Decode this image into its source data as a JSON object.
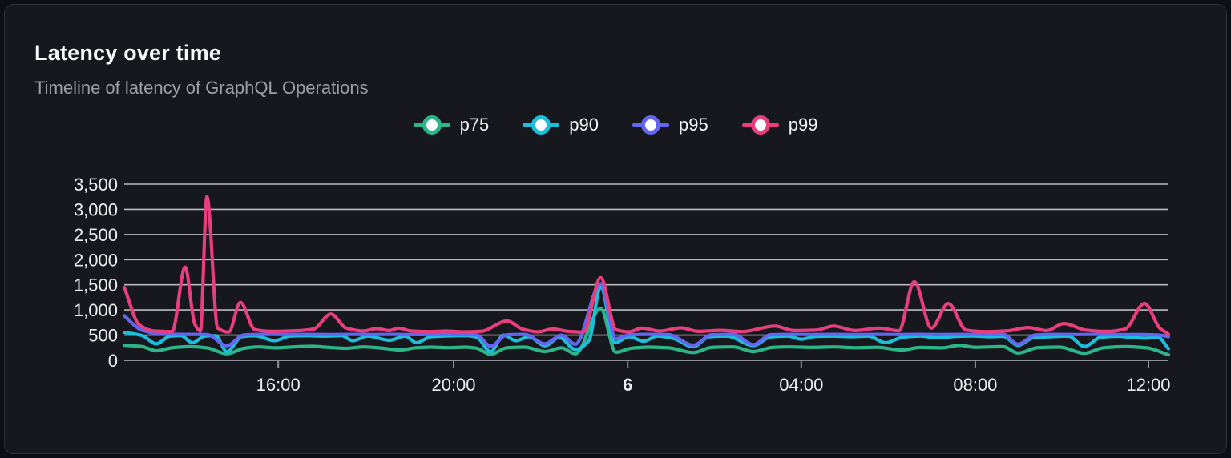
{
  "card": {
    "title": "Latency over time",
    "subtitle": "Timeline of latency of GraphQL Operations"
  },
  "colors": {
    "page_bg": "#0d0f12",
    "card_bg": "#16181d",
    "card_border": "#2e3138",
    "title_text": "#fafafa",
    "subtitle_text": "#9aa0a8",
    "grid_line": "#c7c9ce",
    "axis_line": "#8e9196",
    "axis_text": "#ededee",
    "p75": "#2bb588",
    "p90": "#1cbedb",
    "p95": "#6366f1",
    "p99": "#e83e7e"
  },
  "chart_data": {
    "type": "line",
    "title": "Latency over time",
    "subtitle": "Timeline of latency of GraphQL Operations",
    "xlabel": "",
    "ylabel": "",
    "grid": "horizontal",
    "legend_position": "top-center",
    "x_axis": {
      "unit": "hours-from-left-edge (left edge ≈ 12:30, span 24h)",
      "range_hours": [
        0,
        24
      ],
      "ticks": [
        {
          "hour": 3.54,
          "label": "16:00",
          "bold": false
        },
        {
          "hour": 7.57,
          "label": "20:00",
          "bold": false
        },
        {
          "hour": 11.57,
          "label": "6",
          "bold": true
        },
        {
          "hour": 15.56,
          "label": "04:00",
          "bold": false
        },
        {
          "hour": 19.56,
          "label": "08:00",
          "bold": false
        },
        {
          "hour": 23.54,
          "label": "12:00",
          "bold": false
        }
      ]
    },
    "y_axis": {
      "min": 0,
      "max": 3500,
      "step": 500,
      "tick_labels": [
        "0",
        "500",
        "1,000",
        "1,500",
        "2,000",
        "2,500",
        "3,000",
        "3,500"
      ]
    },
    "series": [
      {
        "name": "p75",
        "color_key": "p75",
        "points": [
          [
            0,
            300
          ],
          [
            0.4,
            275
          ],
          [
            0.74,
            190
          ],
          [
            1.1,
            250
          ],
          [
            1.5,
            272
          ],
          [
            1.9,
            248
          ],
          [
            2.36,
            130
          ],
          [
            2.75,
            240
          ],
          [
            3.1,
            268
          ],
          [
            3.5,
            248
          ],
          [
            3.9,
            268
          ],
          [
            4.3,
            278
          ],
          [
            4.7,
            258
          ],
          [
            5.1,
            238
          ],
          [
            5.5,
            268
          ],
          [
            5.9,
            245
          ],
          [
            6.35,
            205
          ],
          [
            6.7,
            250
          ],
          [
            7.05,
            262
          ],
          [
            7.45,
            252
          ],
          [
            7.85,
            262
          ],
          [
            8.1,
            240
          ],
          [
            8.42,
            120
          ],
          [
            8.8,
            252
          ],
          [
            9.2,
            262
          ],
          [
            9.67,
            175
          ],
          [
            10.05,
            248
          ],
          [
            10.37,
            130
          ],
          [
            10.95,
            1030
          ],
          [
            11.3,
            160
          ],
          [
            11.65,
            240
          ],
          [
            12.05,
            262
          ],
          [
            12.5,
            250
          ],
          [
            13.08,
            155
          ],
          [
            13.5,
            258
          ],
          [
            14.0,
            268
          ],
          [
            14.46,
            175
          ],
          [
            14.9,
            258
          ],
          [
            15.3,
            268
          ],
          [
            15.8,
            258
          ],
          [
            16.3,
            268
          ],
          [
            16.8,
            250
          ],
          [
            17.3,
            260
          ],
          [
            17.87,
            205
          ],
          [
            18.3,
            258
          ],
          [
            18.8,
            248
          ],
          [
            19.2,
            300
          ],
          [
            19.55,
            260
          ],
          [
            19.9,
            268
          ],
          [
            20.2,
            272
          ],
          [
            20.54,
            145
          ],
          [
            21.0,
            252
          ],
          [
            21.5,
            262
          ],
          [
            22.07,
            140
          ],
          [
            22.5,
            250
          ],
          [
            23.0,
            272
          ],
          [
            23.5,
            248
          ],
          [
            24,
            110
          ]
        ]
      },
      {
        "name": "p90",
        "color_key": "p90",
        "points": [
          [
            0,
            555
          ],
          [
            0.4,
            495
          ],
          [
            0.74,
            330
          ],
          [
            1.05,
            480
          ],
          [
            1.3,
            490
          ],
          [
            1.57,
            350
          ],
          [
            1.85,
            480
          ],
          [
            2.1,
            488
          ],
          [
            2.36,
            170
          ],
          [
            2.7,
            470
          ],
          [
            3.0,
            488
          ],
          [
            3.46,
            390
          ],
          [
            3.8,
            480
          ],
          [
            4.2,
            488
          ],
          [
            4.6,
            480
          ],
          [
            5.0,
            488
          ],
          [
            5.25,
            390
          ],
          [
            5.6,
            480
          ],
          [
            6.1,
            400
          ],
          [
            6.45,
            480
          ],
          [
            6.72,
            350
          ],
          [
            7.05,
            470
          ],
          [
            7.45,
            485
          ],
          [
            7.85,
            490
          ],
          [
            8.1,
            460
          ],
          [
            8.42,
            170
          ],
          [
            8.72,
            500
          ],
          [
            9.0,
            390
          ],
          [
            9.3,
            470
          ],
          [
            9.67,
            290
          ],
          [
            10.0,
            455
          ],
          [
            10.37,
            215
          ],
          [
            10.68,
            390
          ],
          [
            10.95,
            1460
          ],
          [
            11.28,
            350
          ],
          [
            11.6,
            470
          ],
          [
            11.94,
            380
          ],
          [
            12.25,
            480
          ],
          [
            12.6,
            440
          ],
          [
            13.08,
            270
          ],
          [
            13.45,
            470
          ],
          [
            13.85,
            480
          ],
          [
            14.46,
            295
          ],
          [
            14.85,
            465
          ],
          [
            15.25,
            480
          ],
          [
            15.56,
            420
          ],
          [
            15.9,
            475
          ],
          [
            16.3,
            480
          ],
          [
            16.7,
            470
          ],
          [
            17.1,
            480
          ],
          [
            17.5,
            350
          ],
          [
            17.9,
            460
          ],
          [
            18.3,
            480
          ],
          [
            18.7,
            445
          ],
          [
            19.1,
            475
          ],
          [
            19.5,
            482
          ],
          [
            19.9,
            470
          ],
          [
            20.2,
            478
          ],
          [
            20.54,
            300
          ],
          [
            20.9,
            450
          ],
          [
            21.3,
            470
          ],
          [
            21.7,
            480
          ],
          [
            22.07,
            275
          ],
          [
            22.45,
            460
          ],
          [
            22.85,
            478
          ],
          [
            23.2,
            450
          ],
          [
            23.5,
            440
          ],
          [
            23.75,
            465
          ],
          [
            24,
            230
          ]
        ]
      },
      {
        "name": "p95",
        "color_key": "p95",
        "points": [
          [
            0,
            885
          ],
          [
            0.4,
            600
          ],
          [
            0.8,
            530
          ],
          [
            1.3,
            515
          ],
          [
            1.9,
            512
          ],
          [
            2.36,
            290
          ],
          [
            2.75,
            505
          ],
          [
            3.2,
            515
          ],
          [
            3.7,
            512
          ],
          [
            4.2,
            515
          ],
          [
            4.7,
            512
          ],
          [
            5.2,
            515
          ],
          [
            5.7,
            512
          ],
          [
            6.2,
            515
          ],
          [
            6.7,
            510
          ],
          [
            7.2,
            515
          ],
          [
            7.7,
            512
          ],
          [
            8.1,
            505
          ],
          [
            8.42,
            280
          ],
          [
            8.8,
            508
          ],
          [
            9.2,
            515
          ],
          [
            9.67,
            330
          ],
          [
            10.05,
            500
          ],
          [
            10.37,
            320
          ],
          [
            10.95,
            1520
          ],
          [
            11.3,
            430
          ],
          [
            11.6,
            505
          ],
          [
            12.0,
            515
          ],
          [
            12.5,
            512
          ],
          [
            13.08,
            300
          ],
          [
            13.5,
            508
          ],
          [
            14.0,
            515
          ],
          [
            14.46,
            310
          ],
          [
            14.85,
            508
          ],
          [
            15.3,
            515
          ],
          [
            15.8,
            512
          ],
          [
            16.3,
            515
          ],
          [
            16.8,
            512
          ],
          [
            17.3,
            515
          ],
          [
            17.8,
            512
          ],
          [
            18.3,
            515
          ],
          [
            18.8,
            512
          ],
          [
            19.3,
            515
          ],
          [
            19.8,
            512
          ],
          [
            20.2,
            515
          ],
          [
            20.54,
            320
          ],
          [
            20.95,
            505
          ],
          [
            21.4,
            515
          ],
          [
            21.9,
            512
          ],
          [
            22.4,
            515
          ],
          [
            22.9,
            512
          ],
          [
            23.4,
            510
          ],
          [
            23.75,
            505
          ],
          [
            24,
            470
          ]
        ]
      },
      {
        "name": "p99",
        "color_key": "p99",
        "points": [
          [
            0,
            1450
          ],
          [
            0.35,
            700
          ],
          [
            0.7,
            580
          ],
          [
            1.1,
            570
          ],
          [
            1.4,
            1850
          ],
          [
            1.62,
            720
          ],
          [
            1.75,
            580
          ],
          [
            1.9,
            3250
          ],
          [
            2.15,
            640
          ],
          [
            2.4,
            560
          ],
          [
            2.67,
            1150
          ],
          [
            3.0,
            610
          ],
          [
            3.4,
            575
          ],
          [
            3.9,
            585
          ],
          [
            4.35,
            620
          ],
          [
            4.75,
            920
          ],
          [
            5.1,
            640
          ],
          [
            5.5,
            580
          ],
          [
            5.8,
            630
          ],
          [
            6.1,
            590
          ],
          [
            6.3,
            640
          ],
          [
            6.6,
            580
          ],
          [
            7.0,
            570
          ],
          [
            7.4,
            580
          ],
          [
            7.8,
            565
          ],
          [
            8.2,
            575
          ],
          [
            8.8,
            780
          ],
          [
            9.15,
            620
          ],
          [
            9.5,
            565
          ],
          [
            9.85,
            620
          ],
          [
            10.2,
            575
          ],
          [
            10.55,
            560
          ],
          [
            10.95,
            1640
          ],
          [
            11.3,
            610
          ],
          [
            11.6,
            565
          ],
          [
            11.9,
            640
          ],
          [
            12.3,
            580
          ],
          [
            12.8,
            645
          ],
          [
            13.2,
            575
          ],
          [
            13.7,
            595
          ],
          [
            14.2,
            570
          ],
          [
            14.95,
            680
          ],
          [
            15.4,
            590
          ],
          [
            15.9,
            600
          ],
          [
            16.3,
            680
          ],
          [
            16.8,
            590
          ],
          [
            17.35,
            640
          ],
          [
            17.8,
            585
          ],
          [
            18.16,
            1560
          ],
          [
            18.55,
            640
          ],
          [
            18.94,
            1130
          ],
          [
            19.35,
            600
          ],
          [
            19.8,
            570
          ],
          [
            20.3,
            585
          ],
          [
            20.77,
            650
          ],
          [
            21.2,
            590
          ],
          [
            21.6,
            730
          ],
          [
            22.1,
            600
          ],
          [
            22.6,
            575
          ],
          [
            23.0,
            620
          ],
          [
            23.45,
            1130
          ],
          [
            23.8,
            640
          ],
          [
            24,
            520
          ]
        ]
      }
    ],
    "legend": [
      "p75",
      "p90",
      "p95",
      "p99"
    ]
  }
}
